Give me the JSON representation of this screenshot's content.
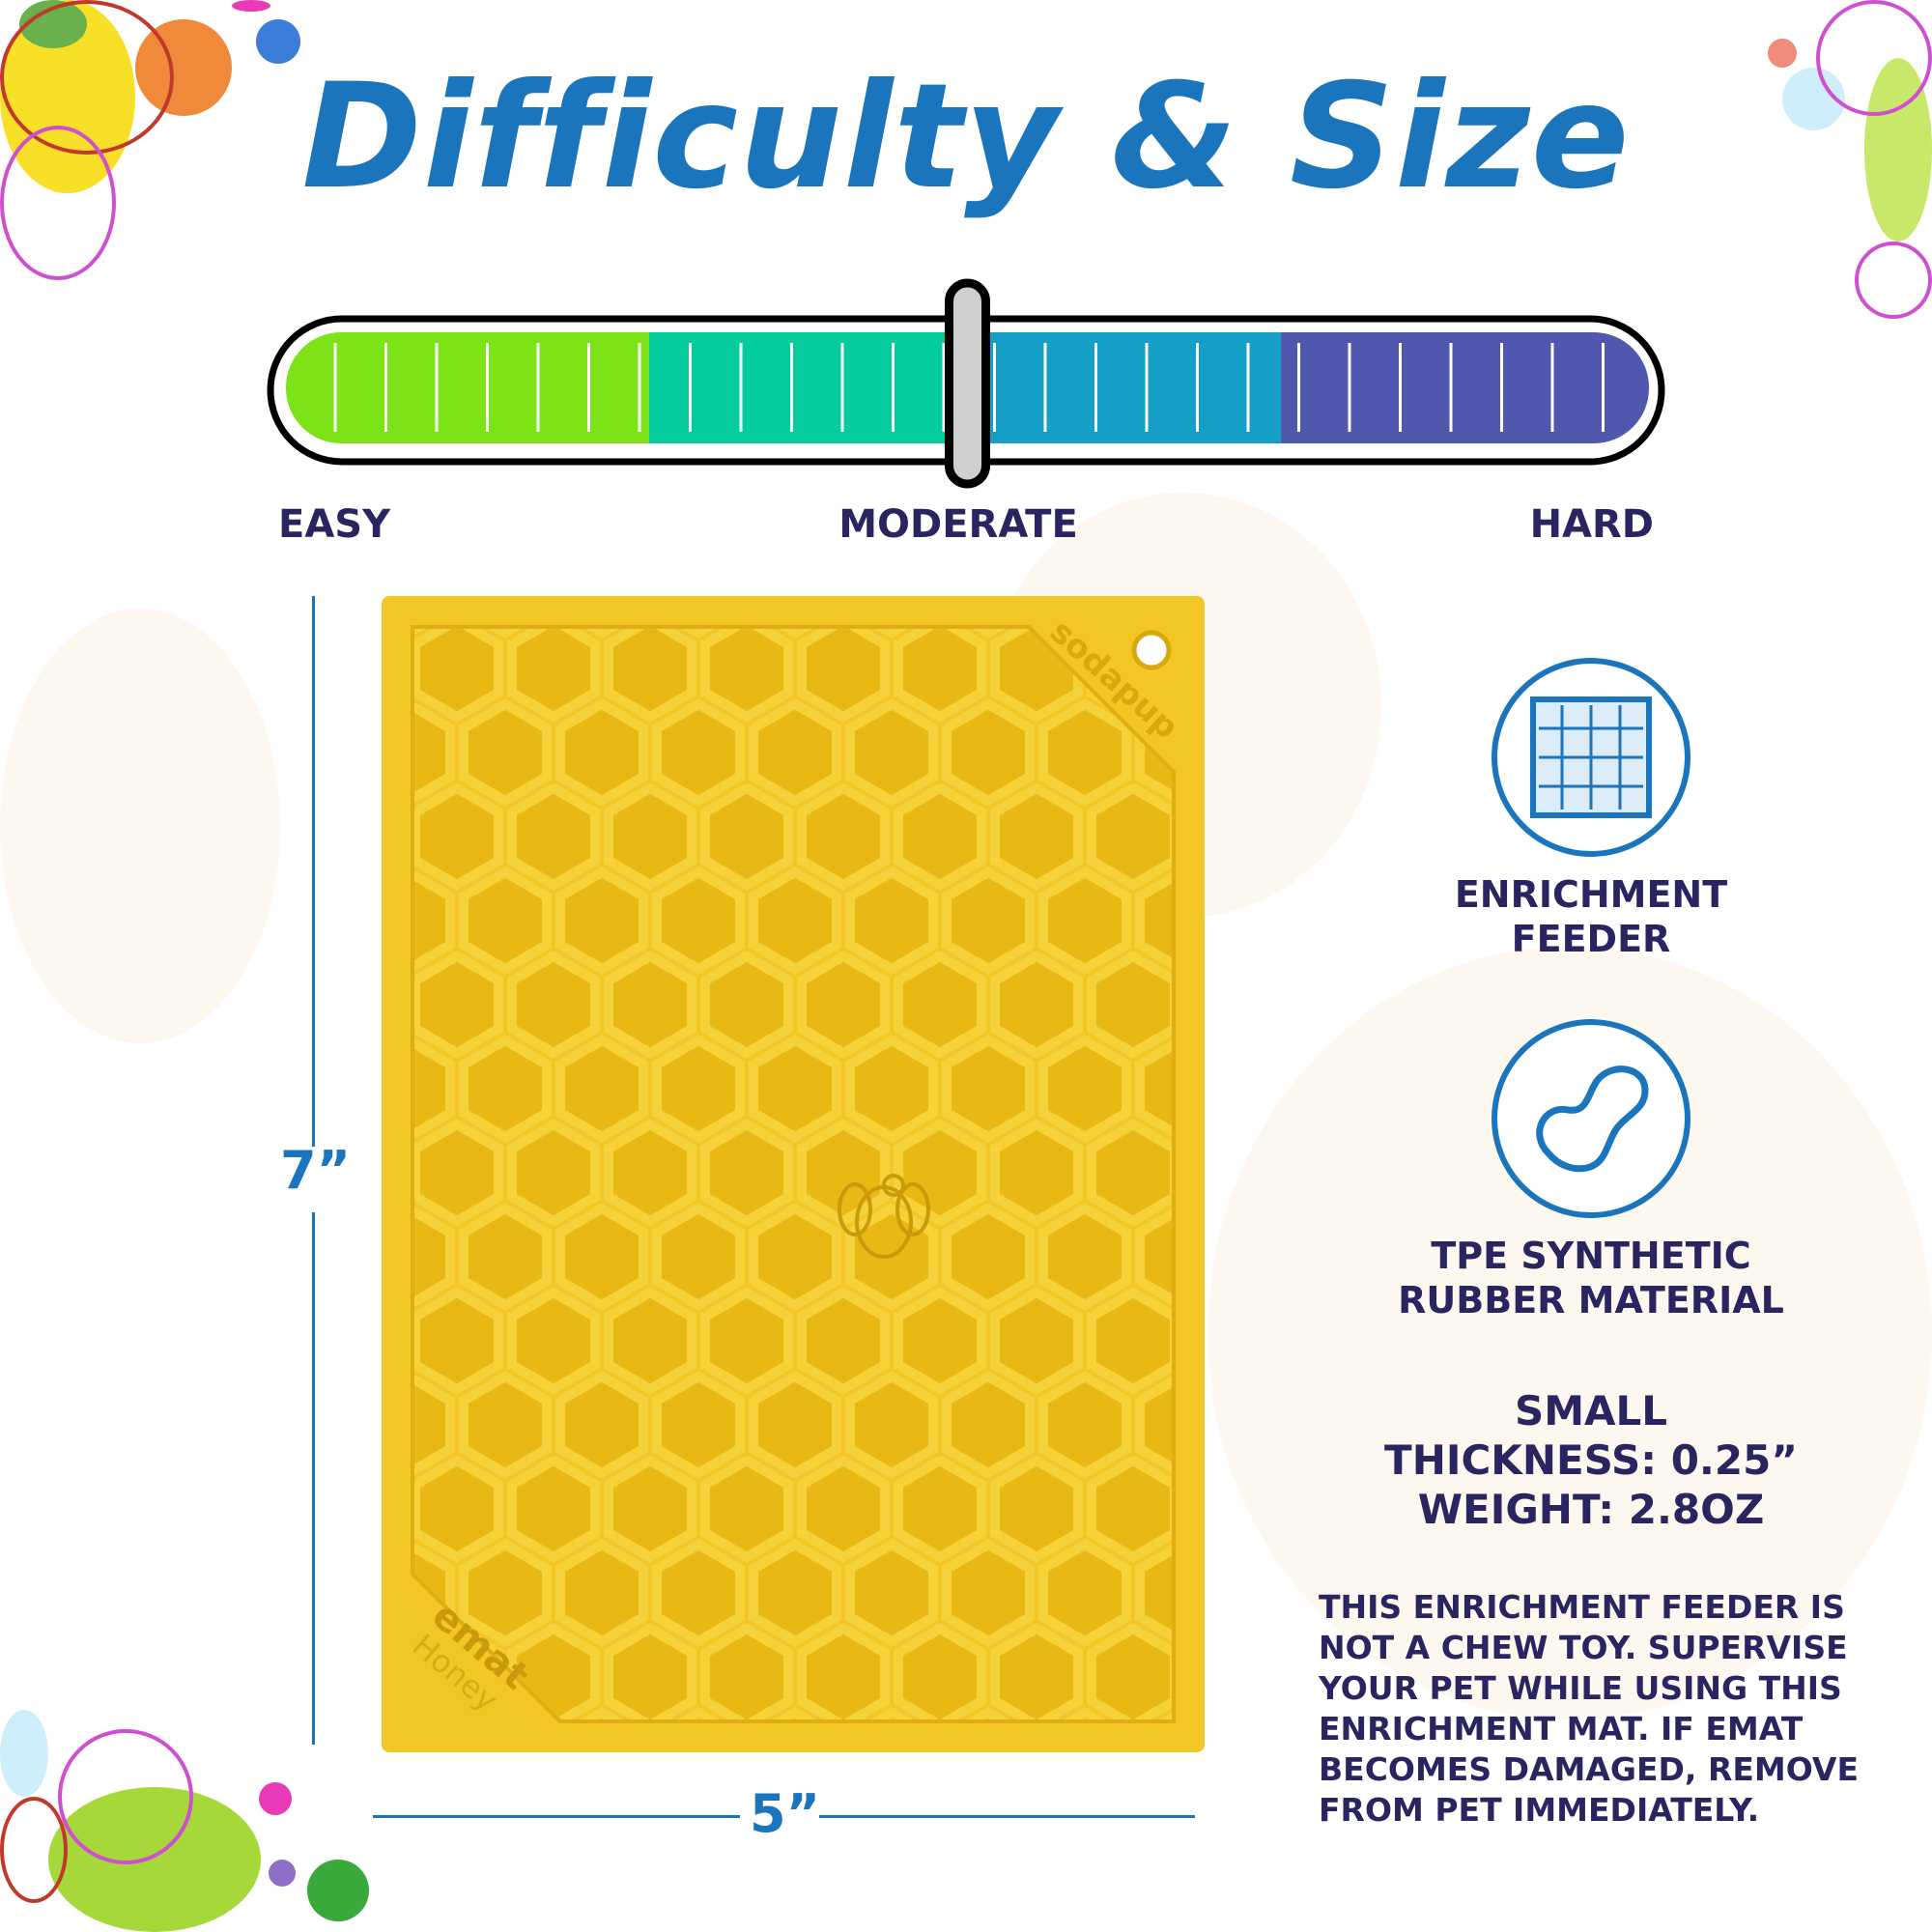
{
  "title": "Difficulty & Size",
  "difficulty": {
    "labels": {
      "easy": "EASY",
      "moderate": "MODERATE",
      "hard": "HARD"
    },
    "level": "moderate",
    "level_fraction": 0.5,
    "segment_colors": [
      "#7de319",
      "#04cc9c",
      "#159fc6",
      "#4f58ad"
    ]
  },
  "product": {
    "color": "#f2c624",
    "engraving_brand": "sodapup",
    "engraving_name": "emat",
    "engraving_variant": "Honey",
    "height_label": "7”",
    "width_label": "5”"
  },
  "features": [
    {
      "icon": "puzzle-icon",
      "lines": [
        "ENRICHMENT",
        "FEEDER"
      ]
    },
    {
      "icon": "peanut-shape-icon",
      "lines": [
        "TPE SYNTHETIC",
        "RUBBER MATERIAL"
      ]
    }
  ],
  "specs": [
    "SMALL",
    "THICKNESS: 0.25”",
    "WEIGHT: 2.8OZ"
  ],
  "disclaimer": [
    "THIS ENRICHMENT FEEDER IS",
    "NOT A CHEW TOY. SUPERVISE",
    "YOUR PET WHILE USING THIS",
    "ENRICHMENT MAT. IF EMAT",
    "BECOMES DAMAGED, REMOVE",
    "FROM PET IMMEDIATELY."
  ]
}
